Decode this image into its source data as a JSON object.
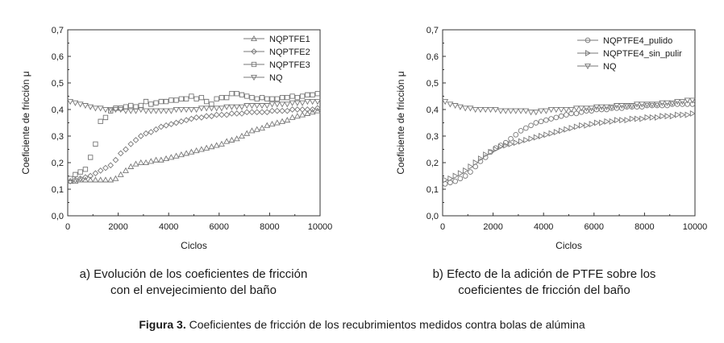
{
  "chart_data": [
    {
      "type": "scatter",
      "title": "",
      "xlabel": "Ciclos",
      "ylabel": "Coeficiente de fricción μ",
      "xlim": [
        0,
        10000
      ],
      "ylim": [
        0.0,
        0.7
      ],
      "xticks": [
        "0",
        "2000",
        "4000",
        "6000",
        "8000",
        "10000"
      ],
      "yticks": [
        "0,0",
        "0,1",
        "0,2",
        "0,3",
        "0,4",
        "0,5",
        "0,6",
        "0,7"
      ],
      "legend": "top-right",
      "grid": false,
      "caption": [
        "a) Evolución de los coeficientes de fricción",
        "con el envejecimiento del baño"
      ],
      "series": [
        {
          "name": "NQPTFE1",
          "marker": "triangle-up",
          "x": [
            100,
            300,
            500,
            700,
            900,
            1100,
            1300,
            1500,
            1700,
            1900,
            2100,
            2300,
            2500,
            2700,
            2900,
            3100,
            3300,
            3500,
            3700,
            3900,
            4100,
            4300,
            4500,
            4700,
            4900,
            5100,
            5300,
            5500,
            5700,
            5900,
            6100,
            6300,
            6500,
            6700,
            6900,
            7100,
            7300,
            7500,
            7700,
            7900,
            8100,
            8300,
            8500,
            8700,
            8900,
            9100,
            9300,
            9500,
            9700,
            9900
          ],
          "y": [
            0.13,
            0.13,
            0.135,
            0.135,
            0.135,
            0.135,
            0.135,
            0.135,
            0.135,
            0.14,
            0.155,
            0.17,
            0.185,
            0.195,
            0.2,
            0.2,
            0.205,
            0.21,
            0.21,
            0.215,
            0.22,
            0.225,
            0.23,
            0.235,
            0.24,
            0.245,
            0.25,
            0.255,
            0.26,
            0.265,
            0.27,
            0.28,
            0.285,
            0.29,
            0.3,
            0.31,
            0.32,
            0.325,
            0.33,
            0.34,
            0.345,
            0.35,
            0.355,
            0.36,
            0.37,
            0.375,
            0.38,
            0.385,
            0.39,
            0.395
          ]
        },
        {
          "name": "NQPTFE2",
          "marker": "diamond",
          "x": [
            100,
            300,
            500,
            700,
            900,
            1100,
            1300,
            1500,
            1700,
            1900,
            2100,
            2300,
            2500,
            2700,
            2900,
            3100,
            3300,
            3500,
            3700,
            3900,
            4100,
            4300,
            4500,
            4700,
            4900,
            5100,
            5300,
            5500,
            5700,
            5900,
            6100,
            6300,
            6500,
            6700,
            6900,
            7100,
            7300,
            7500,
            7700,
            7900,
            8100,
            8300,
            8500,
            8700,
            8900,
            9100,
            9300,
            9500,
            9700,
            9900
          ],
          "y": [
            0.13,
            0.135,
            0.14,
            0.145,
            0.15,
            0.16,
            0.17,
            0.18,
            0.19,
            0.21,
            0.235,
            0.25,
            0.27,
            0.285,
            0.3,
            0.31,
            0.315,
            0.325,
            0.335,
            0.34,
            0.345,
            0.35,
            0.355,
            0.36,
            0.365,
            0.37,
            0.37,
            0.375,
            0.375,
            0.38,
            0.38,
            0.38,
            0.385,
            0.385,
            0.385,
            0.39,
            0.39,
            0.39,
            0.39,
            0.39,
            0.395,
            0.395,
            0.395,
            0.395,
            0.4,
            0.4,
            0.4,
            0.4,
            0.4,
            0.405
          ]
        },
        {
          "name": "NQPTFE3",
          "marker": "square",
          "x": [
            100,
            300,
            500,
            700,
            900,
            1100,
            1300,
            1500,
            1700,
            1900,
            2100,
            2300,
            2500,
            2700,
            2900,
            3100,
            3300,
            3500,
            3700,
            3900,
            4100,
            4300,
            4500,
            4700,
            4900,
            5100,
            5300,
            5500,
            5700,
            5900,
            6100,
            6300,
            6500,
            6700,
            6900,
            7100,
            7300,
            7500,
            7700,
            7900,
            8100,
            8300,
            8500,
            8700,
            8900,
            9100,
            9300,
            9500,
            9700,
            9900
          ],
          "y": [
            0.14,
            0.155,
            0.165,
            0.175,
            0.22,
            0.27,
            0.355,
            0.37,
            0.395,
            0.405,
            0.405,
            0.41,
            0.415,
            0.41,
            0.415,
            0.43,
            0.42,
            0.425,
            0.43,
            0.43,
            0.435,
            0.435,
            0.44,
            0.44,
            0.45,
            0.44,
            0.445,
            0.43,
            0.42,
            0.44,
            0.445,
            0.445,
            0.46,
            0.46,
            0.455,
            0.45,
            0.445,
            0.44,
            0.445,
            0.44,
            0.44,
            0.44,
            0.445,
            0.445,
            0.45,
            0.445,
            0.45,
            0.455,
            0.455,
            0.46
          ]
        },
        {
          "name": "NQ",
          "marker": "triangle-down",
          "x": [
            100,
            300,
            500,
            700,
            900,
            1100,
            1300,
            1500,
            1700,
            1900,
            2100,
            2300,
            2500,
            2700,
            2900,
            3100,
            3300,
            3500,
            3700,
            3900,
            4100,
            4300,
            4500,
            4700,
            4900,
            5100,
            5300,
            5500,
            5700,
            5900,
            6100,
            6300,
            6500,
            6700,
            6900,
            7100,
            7300,
            7500,
            7700,
            7900,
            8100,
            8300,
            8500,
            8700,
            8900,
            9100,
            9300,
            9500,
            9700,
            9900
          ],
          "y": [
            0.43,
            0.425,
            0.42,
            0.415,
            0.41,
            0.405,
            0.405,
            0.4,
            0.4,
            0.4,
            0.4,
            0.395,
            0.395,
            0.395,
            0.4,
            0.395,
            0.395,
            0.395,
            0.395,
            0.395,
            0.395,
            0.4,
            0.4,
            0.4,
            0.4,
            0.4,
            0.405,
            0.405,
            0.405,
            0.405,
            0.405,
            0.41,
            0.41,
            0.41,
            0.41,
            0.415,
            0.415,
            0.415,
            0.415,
            0.415,
            0.42,
            0.42,
            0.42,
            0.42,
            0.425,
            0.425,
            0.425,
            0.43,
            0.43,
            0.43
          ]
        }
      ]
    },
    {
      "type": "scatter",
      "title": "",
      "xlabel": "Ciclos",
      "ylabel": "Coeficiente de fricción μ",
      "xlim": [
        0,
        10000
      ],
      "ylim": [
        0.0,
        0.7
      ],
      "xticks": [
        "0",
        "2000",
        "4000",
        "6000",
        "8000",
        "10000"
      ],
      "yticks": [
        "0,0",
        "0,1",
        "0,2",
        "0,3",
        "0,4",
        "0,5",
        "0,6",
        "0,7"
      ],
      "legend": "top-right",
      "grid": false,
      "caption": [
        "b) Efecto de la adición de PTFE sobre los",
        "coeficientes de fricción del baño"
      ],
      "series": [
        {
          "name": "NQPTFE4_pulido",
          "marker": "circle",
          "x": [
            100,
            300,
            500,
            700,
            900,
            1100,
            1300,
            1500,
            1700,
            1900,
            2100,
            2300,
            2500,
            2700,
            2900,
            3100,
            3300,
            3500,
            3700,
            3900,
            4100,
            4300,
            4500,
            4700,
            4900,
            5100,
            5300,
            5500,
            5700,
            5900,
            6100,
            6300,
            6500,
            6700,
            6900,
            7100,
            7300,
            7500,
            7700,
            7900,
            8100,
            8300,
            8500,
            8700,
            8900,
            9100,
            9300,
            9500,
            9700,
            9900
          ],
          "y": [
            0.12,
            0.125,
            0.13,
            0.14,
            0.15,
            0.165,
            0.185,
            0.205,
            0.22,
            0.24,
            0.255,
            0.265,
            0.275,
            0.29,
            0.305,
            0.32,
            0.33,
            0.34,
            0.35,
            0.355,
            0.36,
            0.365,
            0.37,
            0.375,
            0.38,
            0.385,
            0.385,
            0.39,
            0.395,
            0.395,
            0.4,
            0.4,
            0.4,
            0.405,
            0.405,
            0.405,
            0.41,
            0.41,
            0.41,
            0.41,
            0.415,
            0.415,
            0.415,
            0.415,
            0.415,
            0.42,
            0.42,
            0.42,
            0.42,
            0.42
          ]
        },
        {
          "name": "NQPTFE4_sin_pulir",
          "marker": "triangle-right",
          "x": [
            100,
            300,
            500,
            700,
            900,
            1100,
            1300,
            1500,
            1700,
            1900,
            2100,
            2300,
            2500,
            2700,
            2900,
            3100,
            3300,
            3500,
            3700,
            3900,
            4100,
            4300,
            4500,
            4700,
            4900,
            5100,
            5300,
            5500,
            5700,
            5900,
            6100,
            6300,
            6500,
            6700,
            6900,
            7100,
            7300,
            7500,
            7700,
            7900,
            8100,
            8300,
            8500,
            8700,
            8900,
            9100,
            9300,
            9500,
            9700,
            9900
          ],
          "y": [
            0.135,
            0.14,
            0.15,
            0.16,
            0.17,
            0.185,
            0.2,
            0.215,
            0.23,
            0.24,
            0.25,
            0.26,
            0.265,
            0.27,
            0.275,
            0.28,
            0.285,
            0.29,
            0.295,
            0.3,
            0.305,
            0.31,
            0.315,
            0.32,
            0.325,
            0.33,
            0.335,
            0.34,
            0.34,
            0.345,
            0.35,
            0.35,
            0.355,
            0.355,
            0.36,
            0.36,
            0.36,
            0.365,
            0.365,
            0.365,
            0.37,
            0.37,
            0.37,
            0.375,
            0.375,
            0.375,
            0.38,
            0.38,
            0.38,
            0.385
          ]
        },
        {
          "name": "NQ",
          "marker": "triangle-down",
          "x": [
            100,
            300,
            500,
            700,
            900,
            1100,
            1300,
            1500,
            1700,
            1900,
            2100,
            2300,
            2500,
            2700,
            2900,
            3100,
            3300,
            3500,
            3700,
            3900,
            4100,
            4300,
            4500,
            4700,
            4900,
            5100,
            5300,
            5500,
            5700,
            5900,
            6100,
            6300,
            6500,
            6700,
            6900,
            7100,
            7300,
            7500,
            7700,
            7900,
            8100,
            8300,
            8500,
            8700,
            8900,
            9100,
            9300,
            9500,
            9700,
            9900
          ],
          "y": [
            0.43,
            0.42,
            0.415,
            0.41,
            0.405,
            0.405,
            0.4,
            0.4,
            0.4,
            0.4,
            0.4,
            0.395,
            0.395,
            0.395,
            0.395,
            0.395,
            0.395,
            0.39,
            0.39,
            0.395,
            0.395,
            0.4,
            0.4,
            0.4,
            0.4,
            0.4,
            0.405,
            0.405,
            0.405,
            0.405,
            0.41,
            0.41,
            0.41,
            0.41,
            0.415,
            0.415,
            0.415,
            0.415,
            0.42,
            0.42,
            0.42,
            0.42,
            0.42,
            0.425,
            0.425,
            0.425,
            0.43,
            0.43,
            0.435,
            0.435
          ]
        }
      ]
    }
  ],
  "figure_caption": {
    "label": "Figura 3.",
    "text": " Coeficientes de fricción de los recubrimientos medidos contra bolas de alúmina"
  }
}
